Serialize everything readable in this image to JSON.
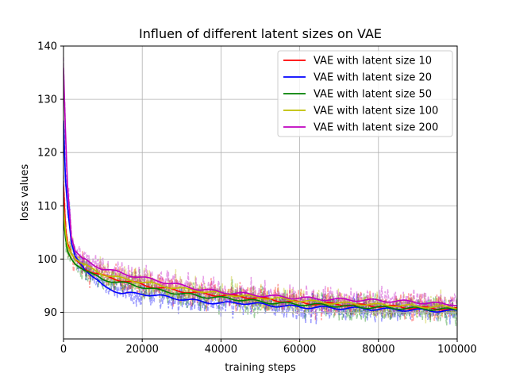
{
  "chart_data": {
    "type": "line",
    "title": "Influen of different latent sizes on VAE",
    "xlabel": "training steps",
    "ylabel": "loss values",
    "xlim": [
      0,
      100000
    ],
    "ylim": [
      85,
      140
    ],
    "xticks": [
      0,
      20000,
      40000,
      60000,
      80000,
      100000
    ],
    "xtick_labels": [
      "0",
      "20000",
      "40000",
      "60000",
      "80000",
      "100000"
    ],
    "yticks": [
      90,
      100,
      110,
      120,
      130,
      140
    ],
    "ytick_labels": [
      "90",
      "100",
      "110",
      "120",
      "130",
      "140"
    ],
    "grid": true,
    "legend_position": "top-right",
    "raw_series_style": "dashed, semi-transparent noisy traces behind each smoothed line",
    "x": [
      0,
      500,
      1000,
      2000,
      3000,
      5000,
      7500,
      10000,
      15000,
      20000,
      25000,
      30000,
      35000,
      40000,
      45000,
      50000,
      55000,
      60000,
      65000,
      70000,
      75000,
      80000,
      85000,
      90000,
      95000,
      100000
    ],
    "series": [
      {
        "name": "VAE with latent size 10",
        "color": "#ff0000",
        "values": [
          114,
          106,
          103,
          101,
          100,
          98.5,
          97.5,
          96.8,
          96,
          95.2,
          94.5,
          94,
          93.5,
          93.2,
          93,
          92.6,
          92.2,
          91.8,
          91.6,
          91.5,
          91.3,
          91.2,
          91,
          90.8,
          90.7,
          90.6
        ]
      },
      {
        "name": "VAE with latent size 20",
        "color": "#0000ff",
        "values": [
          126,
          115,
          110,
          103,
          100.5,
          98.5,
          96.5,
          95,
          93.5,
          93.5,
          93,
          92.5,
          92,
          91.7,
          91.8,
          91.5,
          91.2,
          91,
          90.9,
          90.8,
          90.7,
          90.6,
          90.5,
          90.4,
          90.3,
          90.2
        ]
      },
      {
        "name": "VAE with latent size 50",
        "color": "#008000",
        "values": [
          108,
          104,
          101.5,
          100,
          99,
          98,
          97,
          96.2,
          95.5,
          94.8,
          94,
          93.5,
          93,
          92.7,
          92.4,
          92,
          91.7,
          91.5,
          91.4,
          91.2,
          91,
          90.9,
          90.8,
          90.7,
          90.6,
          90.5
        ]
      },
      {
        "name": "VAE with latent size 100",
        "color": "#bfbf00",
        "values": [
          110,
          105,
          102.5,
          101,
          100,
          99,
          98,
          97.2,
          96.3,
          95.7,
          95,
          94.4,
          94,
          93.5,
          93.1,
          92.8,
          92.5,
          92.2,
          91.9,
          91.7,
          91.6,
          91.4,
          91.3,
          91.1,
          91,
          90.9
        ]
      },
      {
        "name": "VAE with latent size 200",
        "color": "#bf00bf",
        "values": [
          136,
          124,
          114,
          104,
          101.5,
          100,
          99,
          98.2,
          97.3,
          96.5,
          95.8,
          95,
          94.3,
          93.8,
          93.5,
          93.2,
          92.9,
          92.7,
          92.5,
          92.4,
          92.3,
          92.2,
          92.1,
          91.9,
          91.6,
          91.5
        ]
      }
    ]
  }
}
